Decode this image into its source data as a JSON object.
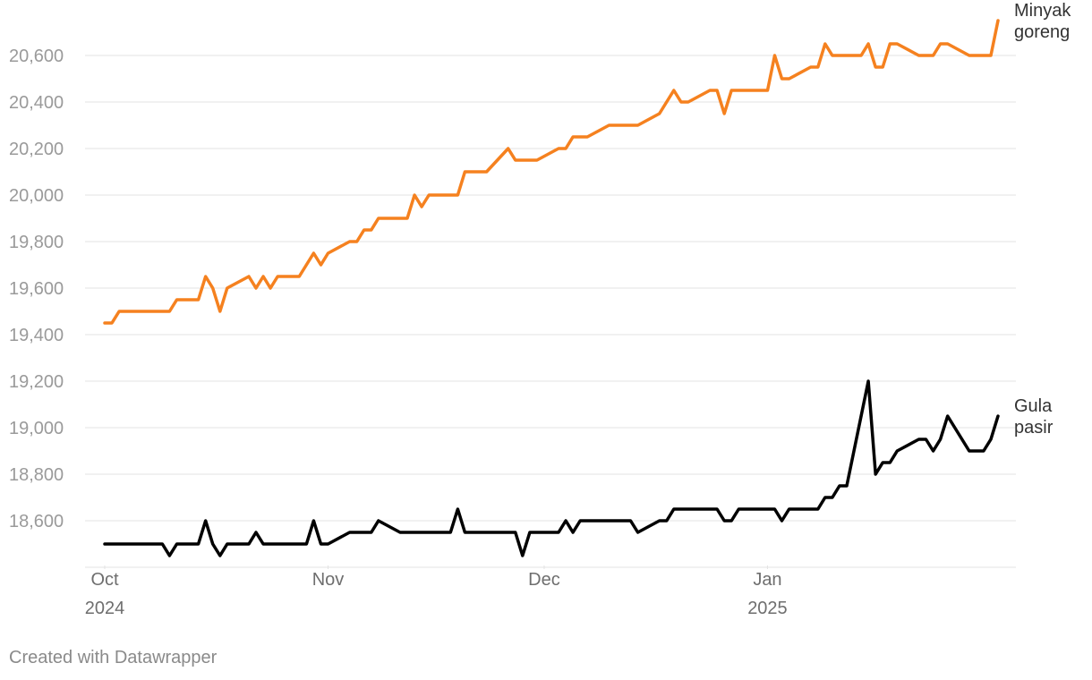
{
  "chart_data": {
    "type": "line",
    "x_axis": {
      "start_date": "2024-10-01",
      "end_date": "2025-01-31",
      "ticks": [
        {
          "date": "2024-10-01",
          "label": "Oct",
          "sublabel": "2024"
        },
        {
          "date": "2024-11-01",
          "label": "Nov",
          "sublabel": ""
        },
        {
          "date": "2024-12-01",
          "label": "Dec",
          "sublabel": ""
        },
        {
          "date": "2025-01-01",
          "label": "Jan",
          "sublabel": "2025"
        }
      ]
    },
    "y_axis": {
      "min": 18400,
      "max": 20800,
      "ticks": [
        18600,
        18800,
        19000,
        19200,
        19400,
        19600,
        19800,
        20000,
        20200,
        20400,
        20600
      ],
      "tick_labels": [
        "18,600",
        "18,800",
        "19,000",
        "19,200",
        "19,400",
        "19,600",
        "19,800",
        "20,000",
        "20,200",
        "20,400",
        "20,600"
      ]
    },
    "grid": true,
    "series": [
      {
        "name": "Minyak goreng",
        "label_lines": [
          "Minyak",
          "goreng"
        ],
        "color": "#f5811f",
        "points": [
          [
            "2024-10-01",
            19450
          ],
          [
            "2024-10-02",
            19450
          ],
          [
            "2024-10-03",
            19500
          ],
          [
            "2024-10-10",
            19500
          ],
          [
            "2024-10-11",
            19550
          ],
          [
            "2024-10-14",
            19550
          ],
          [
            "2024-10-15",
            19650
          ],
          [
            "2024-10-16",
            19600
          ],
          [
            "2024-10-17",
            19500
          ],
          [
            "2024-10-18",
            19600
          ],
          [
            "2024-10-21",
            19650
          ],
          [
            "2024-10-22",
            19600
          ],
          [
            "2024-10-23",
            19650
          ],
          [
            "2024-10-24",
            19600
          ],
          [
            "2024-10-25",
            19650
          ],
          [
            "2024-10-28",
            19650
          ],
          [
            "2024-10-30",
            19750
          ],
          [
            "2024-10-31",
            19700
          ],
          [
            "2024-11-01",
            19750
          ],
          [
            "2024-11-04",
            19800
          ],
          [
            "2024-11-05",
            19800
          ],
          [
            "2024-11-06",
            19850
          ],
          [
            "2024-11-07",
            19850
          ],
          [
            "2024-11-08",
            19900
          ],
          [
            "2024-11-12",
            19900
          ],
          [
            "2024-11-13",
            20000
          ],
          [
            "2024-11-14",
            19950
          ],
          [
            "2024-11-15",
            20000
          ],
          [
            "2024-11-19",
            20000
          ],
          [
            "2024-11-20",
            20100
          ],
          [
            "2024-11-23",
            20100
          ],
          [
            "2024-11-26",
            20200
          ],
          [
            "2024-11-27",
            20150
          ],
          [
            "2024-11-30",
            20150
          ],
          [
            "2024-12-03",
            20200
          ],
          [
            "2024-12-04",
            20200
          ],
          [
            "2024-12-05",
            20250
          ],
          [
            "2024-12-07",
            20250
          ],
          [
            "2024-12-10",
            20300
          ],
          [
            "2024-12-14",
            20300
          ],
          [
            "2024-12-17",
            20350
          ],
          [
            "2024-12-19",
            20450
          ],
          [
            "2024-12-20",
            20400
          ],
          [
            "2024-12-21",
            20400
          ],
          [
            "2024-12-24",
            20450
          ],
          [
            "2024-12-25",
            20450
          ],
          [
            "2024-12-26",
            20350
          ],
          [
            "2024-12-27",
            20450
          ],
          [
            "2024-12-31",
            20450
          ],
          [
            "2025-01-01",
            20450
          ],
          [
            "2025-01-02",
            20600
          ],
          [
            "2025-01-03",
            20500
          ],
          [
            "2025-01-04",
            20500
          ],
          [
            "2025-01-07",
            20550
          ],
          [
            "2025-01-08",
            20550
          ],
          [
            "2025-01-09",
            20650
          ],
          [
            "2025-01-10",
            20600
          ],
          [
            "2025-01-14",
            20600
          ],
          [
            "2025-01-15",
            20650
          ],
          [
            "2025-01-16",
            20550
          ],
          [
            "2025-01-17",
            20550
          ],
          [
            "2025-01-18",
            20650
          ],
          [
            "2025-01-19",
            20650
          ],
          [
            "2025-01-22",
            20600
          ],
          [
            "2025-01-24",
            20600
          ],
          [
            "2025-01-25",
            20650
          ],
          [
            "2025-01-26",
            20650
          ],
          [
            "2025-01-29",
            20600
          ],
          [
            "2025-01-30",
            20600
          ],
          [
            "2025-01-31",
            20600
          ],
          [
            "2025-02-01",
            20600
          ],
          [
            "2025-02-02",
            20750
          ]
        ]
      },
      {
        "name": "Gula pasir",
        "label_lines": [
          "Gula",
          "pasir"
        ],
        "color": "#000000",
        "points": [
          [
            "2024-10-01",
            18500
          ],
          [
            "2024-10-09",
            18500
          ],
          [
            "2024-10-10",
            18450
          ],
          [
            "2024-10-11",
            18500
          ],
          [
            "2024-10-14",
            18500
          ],
          [
            "2024-10-15",
            18600
          ],
          [
            "2024-10-16",
            18500
          ],
          [
            "2024-10-17",
            18450
          ],
          [
            "2024-10-18",
            18500
          ],
          [
            "2024-10-21",
            18500
          ],
          [
            "2024-10-22",
            18550
          ],
          [
            "2024-10-23",
            18500
          ],
          [
            "2024-10-29",
            18500
          ],
          [
            "2024-10-30",
            18600
          ],
          [
            "2024-10-31",
            18500
          ],
          [
            "2024-11-01",
            18500
          ],
          [
            "2024-11-04",
            18550
          ],
          [
            "2024-11-07",
            18550
          ],
          [
            "2024-11-08",
            18600
          ],
          [
            "2024-11-11",
            18550
          ],
          [
            "2024-11-18",
            18550
          ],
          [
            "2024-11-19",
            18650
          ],
          [
            "2024-11-20",
            18550
          ],
          [
            "2024-11-27",
            18550
          ],
          [
            "2024-11-28",
            18450
          ],
          [
            "2024-11-29",
            18550
          ],
          [
            "2024-12-03",
            18550
          ],
          [
            "2024-12-04",
            18600
          ],
          [
            "2024-12-05",
            18550
          ],
          [
            "2024-12-06",
            18600
          ],
          [
            "2024-12-13",
            18600
          ],
          [
            "2024-12-14",
            18550
          ],
          [
            "2024-12-17",
            18600
          ],
          [
            "2024-12-18",
            18600
          ],
          [
            "2024-12-19",
            18650
          ],
          [
            "2024-12-25",
            18650
          ],
          [
            "2024-12-26",
            18600
          ],
          [
            "2024-12-27",
            18600
          ],
          [
            "2024-12-28",
            18650
          ],
          [
            "2024-12-31",
            18650
          ],
          [
            "2025-01-02",
            18650
          ],
          [
            "2025-01-03",
            18600
          ],
          [
            "2025-01-04",
            18650
          ],
          [
            "2025-01-08",
            18650
          ],
          [
            "2025-01-09",
            18700
          ],
          [
            "2025-01-10",
            18700
          ],
          [
            "2025-01-11",
            18750
          ],
          [
            "2025-01-12",
            18750
          ],
          [
            "2025-01-15",
            19200
          ],
          [
            "2025-01-16",
            18800
          ],
          [
            "2025-01-17",
            18850
          ],
          [
            "2025-01-18",
            18850
          ],
          [
            "2025-01-19",
            18900
          ],
          [
            "2025-01-22",
            18950
          ],
          [
            "2025-01-23",
            18950
          ],
          [
            "2025-01-24",
            18900
          ],
          [
            "2025-01-25",
            18950
          ],
          [
            "2025-01-26",
            19050
          ],
          [
            "2025-01-29",
            18900
          ],
          [
            "2025-01-31",
            18900
          ],
          [
            "2025-02-01",
            18950
          ],
          [
            "2025-02-02",
            19050
          ]
        ]
      }
    ]
  },
  "footer": {
    "credit": "Created with Datawrapper"
  }
}
